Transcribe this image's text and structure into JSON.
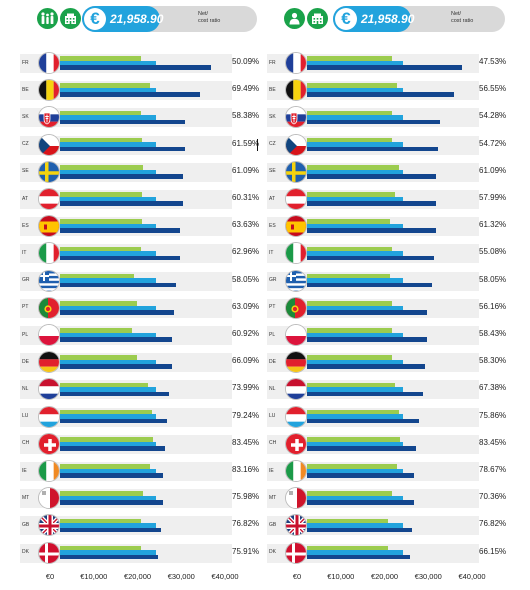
{
  "header": {
    "amount": "21,958.90",
    "euro_symbol": "€",
    "net_label_line1": "Net/",
    "net_label_line2": "cost ratio"
  },
  "colors": {
    "green": "#9ccc4f",
    "light_blue": "#22a3dd",
    "dark_blue": "#13468e",
    "icon_green": "#1aa24a"
  },
  "chart_data": [
    {
      "type": "bar",
      "orientation": "horizontal",
      "header_icons": [
        "family-icon",
        "building-icon"
      ],
      "categories": [
        "FR",
        "BE",
        "SK",
        "CZ",
        "SE",
        "AT",
        "ES",
        "IT",
        "GR",
        "PT",
        "PL",
        "DE",
        "NL",
        "LU",
        "CH",
        "IE",
        "MT",
        "GB",
        "DK"
      ],
      "series": [
        {
          "values": [
            18500,
            20500,
            18500,
            18800,
            19000,
            18800,
            18800,
            18500,
            17000,
            17500,
            16500,
            17500,
            20000,
            21000,
            21300,
            20500,
            19000,
            18500,
            18500
          ]
        },
        {
          "values": [
            21958.9,
            21958.9,
            21958.9,
            21958.9,
            21958.9,
            21958.9,
            21958.9,
            21958.9,
            21958.9,
            21958.9,
            21958.9,
            21958.9,
            21958.9,
            21958.9,
            21958.9,
            21958.9,
            21958.9,
            21958.9,
            21958.9
          ]
        },
        {
          "values": [
            34500,
            32000,
            28500,
            28500,
            28000,
            28000,
            27500,
            27500,
            26500,
            26000,
            25500,
            25500,
            25000,
            24500,
            24000,
            23500,
            23500,
            23000,
            22500
          ]
        }
      ],
      "ratios": [
        "50.09%",
        "69.49%",
        "58.38%",
        "61.59%",
        "61.09%",
        "60.31%",
        "63.63%",
        "62.96%",
        "58.05%",
        "63.09%",
        "60.92%",
        "66.09%",
        "73.99%",
        "79.24%",
        "83.45%",
        "83.16%",
        "75.98%",
        "76.82%",
        "75.91%"
      ],
      "x_ticks": [
        "€0",
        "€10,000",
        "€20,000",
        "€30,000",
        "€40,000"
      ],
      "xlim": [
        0,
        40000
      ]
    },
    {
      "type": "bar",
      "orientation": "horizontal",
      "header_icons": [
        "person-icon",
        "building-icon"
      ],
      "categories": [
        "FR",
        "BE",
        "SK",
        "CZ",
        "SE",
        "AT",
        "ES",
        "IT",
        "GR",
        "PT",
        "PL",
        "DE",
        "NL",
        "LU",
        "CH",
        "IE",
        "MT",
        "GB",
        "DK"
      ],
      "series": [
        {
          "values": [
            19500,
            20500,
            19500,
            19500,
            21000,
            20000,
            19000,
            19500,
            19000,
            19500,
            19500,
            19500,
            20000,
            21000,
            21300,
            20500,
            19500,
            18500,
            18500
          ]
        },
        {
          "values": [
            21958.9,
            21958.9,
            21958.9,
            21958.9,
            21958.9,
            21958.9,
            21958.9,
            21958.9,
            21958.9,
            21958.9,
            21958.9,
            21958.9,
            21958.9,
            21958.9,
            21958.9,
            21958.9,
            21958.9,
            21958.9,
            21958.9
          ]
        },
        {
          "values": [
            35500,
            33500,
            30500,
            30000,
            29500,
            29500,
            29500,
            29000,
            28500,
            27500,
            27500,
            27000,
            26500,
            25500,
            25000,
            24500,
            24500,
            24000,
            23500
          ]
        }
      ],
      "ratios": [
        "47.53%",
        "56.55%",
        "54.28%",
        "54.72%",
        "61.09%",
        "57.99%",
        "61.32%",
        "55.08%",
        "58.05%",
        "56.16%",
        "58.43%",
        "58.30%",
        "67.38%",
        "75.86%",
        "83.45%",
        "78.67%",
        "70.36%",
        "76.82%",
        "66.15%"
      ],
      "x_ticks": [
        "€0",
        "€10,000",
        "€20,000",
        "€30,000",
        "€40,000"
      ],
      "xlim": [
        0,
        40000
      ]
    }
  ]
}
